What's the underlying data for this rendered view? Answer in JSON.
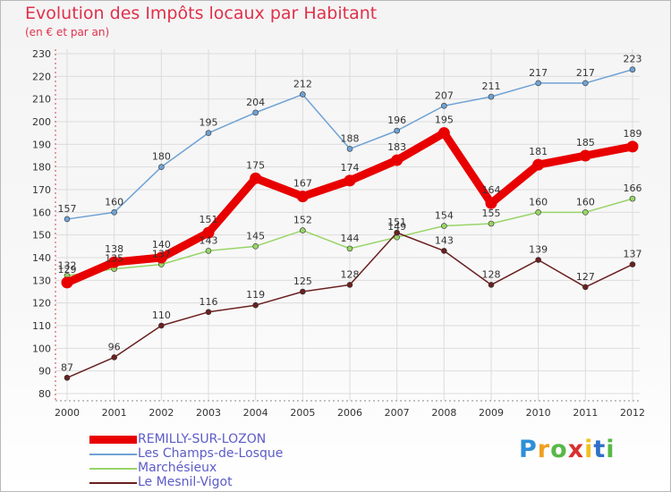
{
  "header": {
    "title": "Evolution des Impôts locaux par Habitant",
    "subtitle": "(en € et par an)"
  },
  "chart_data": {
    "type": "line",
    "title": "Evolution des Impôts locaux par Habitant",
    "subtitle": "(en € et par an)",
    "xlabel": "",
    "ylabel": "",
    "x": [
      "2000",
      "2001",
      "2002",
      "2003",
      "2004",
      "2005",
      "2006",
      "2007",
      "2008",
      "2009",
      "2010",
      "2011",
      "2012"
    ],
    "ylim": [
      80,
      230
    ],
    "yticks": [
      80,
      90,
      100,
      110,
      120,
      130,
      140,
      150,
      160,
      170,
      180,
      190,
      200,
      210,
      220,
      230
    ],
    "grid": true,
    "legend_position": "bottom-left",
    "series": [
      {
        "name": "REMILLY-SUR-LOZON",
        "color": "#e80000",
        "values": [
          129,
          138,
          140,
          151,
          175,
          167,
          174,
          183,
          195,
          164,
          181,
          185,
          189
        ]
      },
      {
        "name": "Les Champs-de-Losque",
        "color": "#6fa2d4",
        "values": [
          157,
          160,
          180,
          195,
          204,
          212,
          188,
          196,
          207,
          211,
          217,
          217,
          223
        ]
      },
      {
        "name": "Marchésieux",
        "color": "#98d468",
        "values": [
          132,
          135,
          137,
          143,
          145,
          152,
          144,
          149,
          154,
          155,
          160,
          160,
          166
        ]
      },
      {
        "name": "Le Mesnil-Vigot",
        "color": "#6a2020",
        "values": [
          87,
          96,
          110,
          116,
          119,
          125,
          128,
          151,
          143,
          128,
          139,
          127,
          137
        ]
      }
    ]
  },
  "logo": {
    "letters": [
      "P",
      "r",
      "o",
      "x",
      "i",
      "t",
      "i"
    ],
    "colors": [
      "#2f8fd8",
      "#f0a020",
      "#58b848",
      "#d83030",
      "#f0c020",
      "#3070c8",
      "#58b848"
    ]
  }
}
